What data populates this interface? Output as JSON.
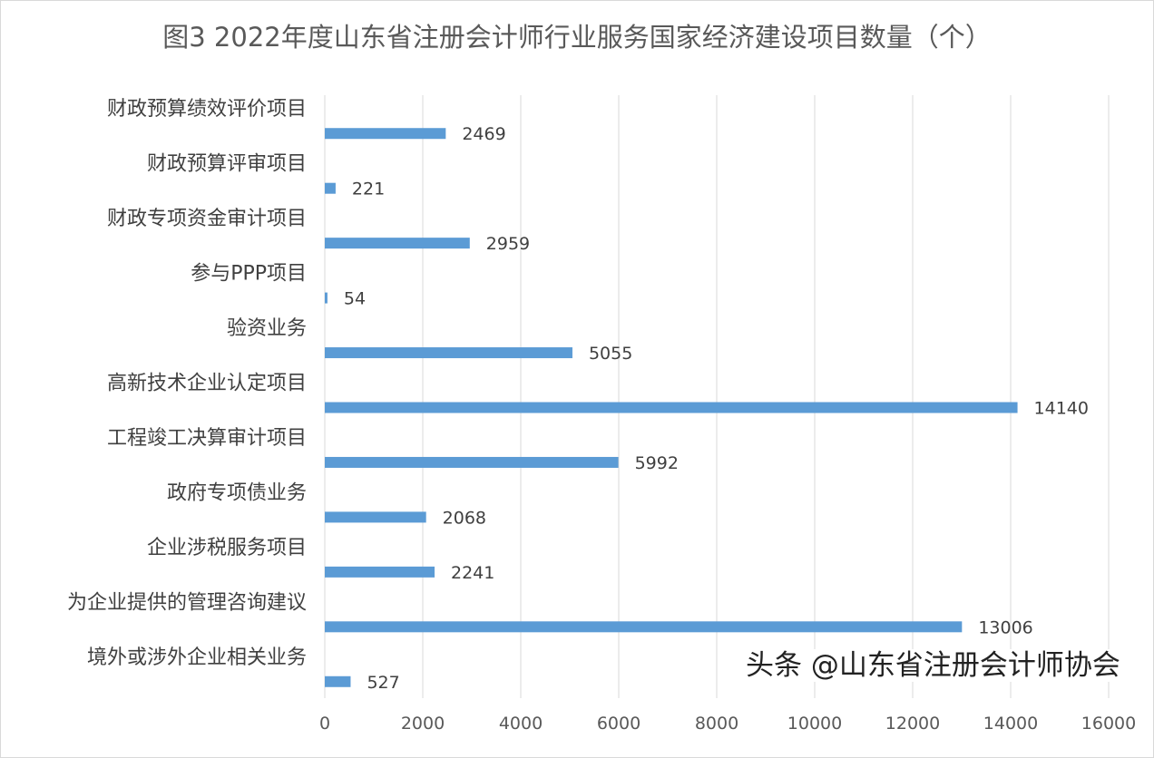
{
  "chart_data": {
    "type": "bar",
    "orientation": "horizontal",
    "title": "图3  2022年度山东省注册会计师行业服务国家经济建设项目数量（个）",
    "categories": [
      "财政预算绩效评价项目",
      "财政预算评审项目",
      "财政专项资金审计项目",
      "参与PPP项目",
      "验资业务",
      "高新技术企业认定项目",
      "工程竣工决算审计项目",
      "政府专项债业务",
      "企业涉税服务项目",
      "为企业提供的管理咨询建议",
      "境外或涉外企业相关业务"
    ],
    "values": [
      2469,
      221,
      2959,
      54,
      5055,
      14140,
      5992,
      2068,
      2241,
      13006,
      527
    ],
    "xlim": [
      0,
      16000
    ],
    "xticks": [
      "0",
      "2000",
      "4000",
      "6000",
      "8000",
      "10000",
      "12000",
      "14000",
      "16000"
    ],
    "grid": true,
    "data_labels": true,
    "bar_color": "#5B9BD5"
  },
  "watermark": "头条 @山东省注册会计师协会"
}
